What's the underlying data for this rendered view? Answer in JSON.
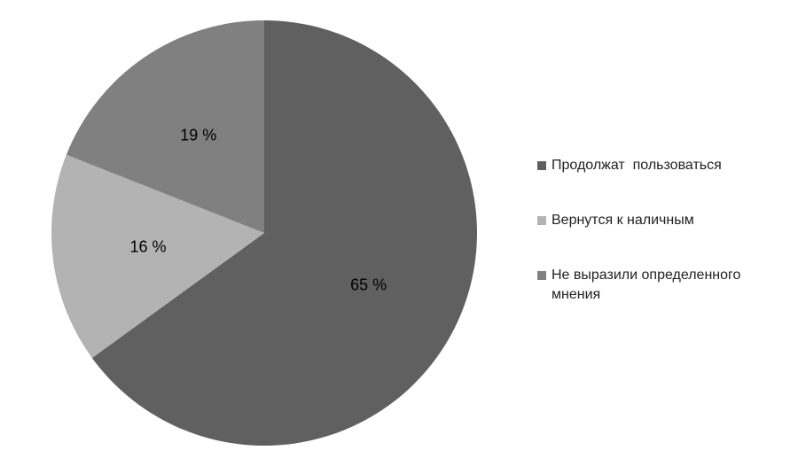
{
  "chart_data": {
    "type": "pie",
    "categories": [
      "Продолжат  пользоваться",
      "Вернутся к наличным",
      "Не выразили определенного мнения"
    ],
    "values": [
      65,
      16,
      19
    ],
    "value_labels": [
      "65 %",
      "16 %",
      "19 %"
    ],
    "colors": [
      "#606060",
      "#b3b3b3",
      "#808080"
    ],
    "legend": "right"
  }
}
